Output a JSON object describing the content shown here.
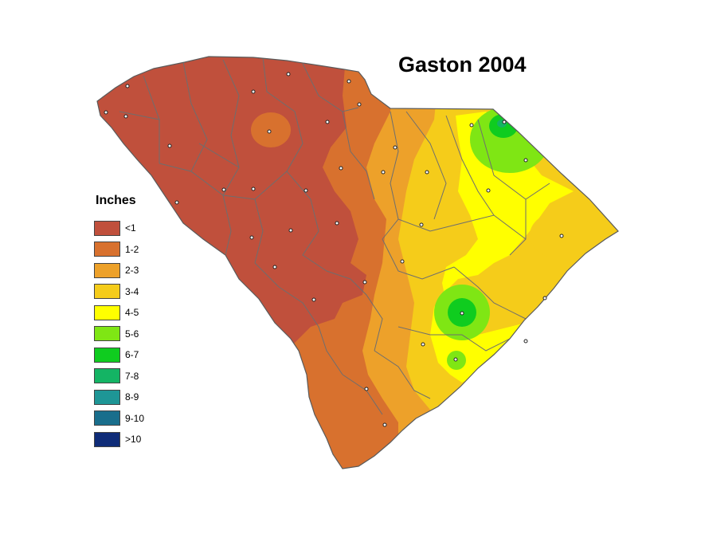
{
  "title": "Gaston 2004",
  "legend": {
    "title": "Inches",
    "items": [
      {
        "label": "<1",
        "color": "#c0503c"
      },
      {
        "label": "1-2",
        "color": "#d8712e"
      },
      {
        "label": "2-3",
        "color": "#eda12a"
      },
      {
        "label": "3-4",
        "color": "#f5cc1a"
      },
      {
        "label": "4-5",
        "color": "#ffff00"
      },
      {
        "label": "5-6",
        "color": "#7fe614"
      },
      {
        "label": "6-7",
        "color": "#0fcc1f"
      },
      {
        "label": "7-8",
        "color": "#14b464"
      },
      {
        "label": "8-9",
        "color": "#1e9696"
      },
      {
        "label": "9-10",
        "color": "#196e8c"
      },
      {
        "label": ">10",
        "color": "#0f2c78"
      }
    ]
  },
  "map": {
    "region": "South Carolina",
    "county_boundaries": "shown",
    "station_markers": "shown"
  }
}
